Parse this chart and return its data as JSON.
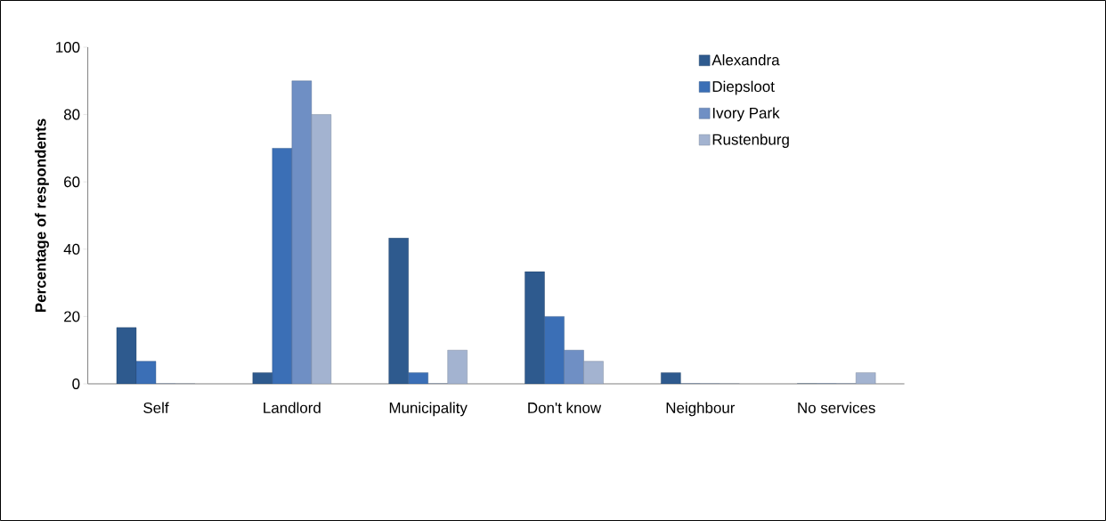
{
  "chart_data": {
    "type": "bar",
    "ylabel": "Percentage of respondents",
    "categories": [
      "Self",
      "Landlord",
      "Municipality",
      "Don't know",
      "Neighbour",
      "No services"
    ],
    "series": [
      {
        "name": "Alexandra",
        "color": "#2e5a8e",
        "values": [
          16.7,
          3.3,
          43.3,
          33.3,
          3.3,
          0
        ]
      },
      {
        "name": "Diepsloot",
        "color": "#3b6fb6",
        "values": [
          6.7,
          70,
          3.3,
          20,
          0,
          0
        ]
      },
      {
        "name": "Ivory Park",
        "color": "#6f8fc4",
        "values": [
          0,
          90,
          0,
          10,
          0,
          0
        ]
      },
      {
        "name": "Rustenburg",
        "color": "#a3b3d0",
        "values": [
          0,
          80,
          10,
          6.7,
          0,
          3.3
        ]
      }
    ],
    "ylim": [
      0,
      100
    ],
    "yticks": [
      0,
      20,
      40,
      60,
      80,
      100
    ],
    "grid": false,
    "legend": "top right"
  }
}
